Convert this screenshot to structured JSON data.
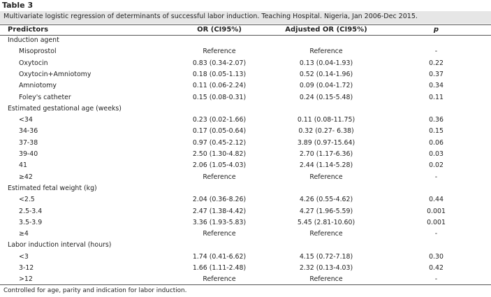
{
  "table_label": "Table 3",
  "caption": "Multivariate logistic regression of determinants of successful labor induction. Teaching Hospital. Nigeria, Jan 2006-Dec 2015.",
  "headers": [
    "Predictors",
    "OR (CI95%)",
    "Adjusted OR (CI95%)",
    "p"
  ],
  "rows": [
    {
      "kind": "group",
      "predictor": "Induction agent"
    },
    {
      "kind": "item",
      "predictor": "Misoprostol",
      "or": "Reference",
      "aor": "Reference",
      "p": "-"
    },
    {
      "kind": "item",
      "predictor": "Oxytocin",
      "or": "0.83 (0.34-2.07)",
      "aor": "0.13 (0.04-1.93)",
      "p": "0.22"
    },
    {
      "kind": "item",
      "predictor": "Oxytocin+Amniotomy",
      "or": "0.18 (0.05-1.13)",
      "aor": "0.52 (0.14-1.96)",
      "p": "0.37"
    },
    {
      "kind": "item",
      "predictor": "Amniotomy",
      "or": "0.11 (0.06-2.24)",
      "aor": "0.09 (0.04-1.72)",
      "p": "0.34"
    },
    {
      "kind": "item",
      "predictor": "Foley's catheter",
      "or": "0.15 (0.08-0.31)",
      "aor": "0.24 (0.15-5.48)",
      "p": "0.11"
    },
    {
      "kind": "group",
      "predictor": "Estimated gestational age (weeks)"
    },
    {
      "kind": "item",
      "predictor": "<34",
      "or": "0.23 (0.02-1.66)",
      "aor": "0.11 (0.08-11.75)",
      "p": "0.36"
    },
    {
      "kind": "item",
      "predictor": "34-36",
      "or": "0.17 (0.05-0.64)",
      "aor": "0.32 (0.27- 6.38)",
      "p": "0.15"
    },
    {
      "kind": "item",
      "predictor": "37-38",
      "or": "0.97 (0.45-2.12)",
      "aor": "3.89 (0.97-15.64)",
      "p": "0.06"
    },
    {
      "kind": "item",
      "predictor": "39-40",
      "or": "2.50 (1.30-4.82)",
      "aor": "2.70 (1.17-6.36)",
      "p": "0.03"
    },
    {
      "kind": "item",
      "predictor": "41",
      "or": "2.06 (1.05-4.03)",
      "aor": "2.44 (1.14-5.28)",
      "p": "0.02"
    },
    {
      "kind": "item",
      "predictor": "≥42",
      "or": "Reference",
      "aor": "Reference",
      "p": "-"
    },
    {
      "kind": "group",
      "predictor": "Estimated fetal weight (kg)"
    },
    {
      "kind": "item",
      "predictor": "<2.5",
      "or": "2.04 (0.36-8.26)",
      "aor": "4.26 (0.55-4.62)",
      "p": "0.44"
    },
    {
      "kind": "item",
      "predictor": "2.5-3.4",
      "or": "2.47 (1.38-4.42)",
      "aor": "4.27 (1.96-5.59)",
      "p": "0.001"
    },
    {
      "kind": "item",
      "predictor": "3.5-3.9",
      "or": "3.36 (1.93-5.83)",
      "aor": "5.45 (2.81-10.60)",
      "p": "0.001"
    },
    {
      "kind": "item",
      "predictor": "≥4",
      "or": "Reference",
      "aor": "Reference",
      "p": "-"
    },
    {
      "kind": "group",
      "predictor": "Labor induction interval (hours)"
    },
    {
      "kind": "item",
      "predictor": "<3",
      "or": "1.74 (0.41-6.62)",
      "aor": "4.15 (0.72-7.18)",
      "p": "0.30"
    },
    {
      "kind": "item",
      "predictor": "3-12",
      "or": "1.66 (1.11-2.48)",
      "aor": "2.32 (0.13-4.03)",
      "p": "0.42"
    },
    {
      "kind": "item",
      "predictor": ">12",
      "or": "Reference",
      "aor": "Reference",
      "p": "-"
    }
  ],
  "footnote": "Controlled for age, parity and indication for labor induction."
}
